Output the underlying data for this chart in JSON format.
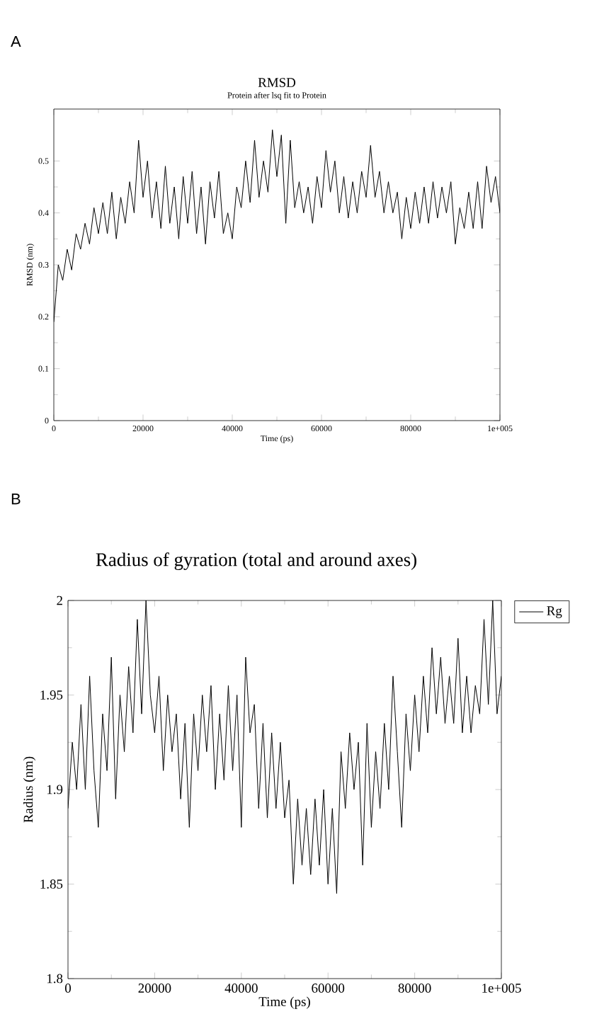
{
  "chart_data": [
    {
      "type": "line",
      "title": "RMSD",
      "subtitle": "Protein after lsq fit to Protein",
      "xlabel": "Time (ps)",
      "ylabel": "RMSD (nm)",
      "annotations": [
        "A"
      ],
      "xlim": [
        0,
        100000
      ],
      "ylim": [
        0,
        0.6
      ],
      "xticks": [
        0,
        20000,
        40000,
        60000,
        80000,
        {
          "value": 100000,
          "label": "1e+005"
        }
      ],
      "yticks": [
        0,
        0.1,
        0.2,
        0.3,
        0.4,
        0.5
      ],
      "grid": false,
      "legend": false,
      "marker": "none",
      "line_style": "solid",
      "x": [
        0,
        1000,
        2000,
        3000,
        4000,
        5000,
        6000,
        7000,
        8000,
        9000,
        10000,
        11000,
        12000,
        13000,
        14000,
        15000,
        16000,
        17000,
        18000,
        19000,
        20000,
        21000,
        22000,
        23000,
        24000,
        25000,
        26000,
        27000,
        28000,
        29000,
        30000,
        31000,
        32000,
        33000,
        34000,
        35000,
        36000,
        37000,
        38000,
        39000,
        40000,
        41000,
        42000,
        43000,
        44000,
        45000,
        46000,
        47000,
        48000,
        49000,
        50000,
        51000,
        52000,
        53000,
        54000,
        55000,
        56000,
        57000,
        58000,
        59000,
        60000,
        61000,
        62000,
        63000,
        64000,
        65000,
        66000,
        67000,
        68000,
        69000,
        70000,
        71000,
        72000,
        73000,
        74000,
        75000,
        76000,
        77000,
        78000,
        79000,
        80000,
        81000,
        82000,
        83000,
        84000,
        85000,
        86000,
        87000,
        88000,
        89000,
        90000,
        91000,
        92000,
        93000,
        94000,
        95000,
        96000,
        97000,
        98000,
        99000,
        100000
      ],
      "series": [
        {
          "color": "#000000",
          "values": [
            0.19,
            0.3,
            0.27,
            0.33,
            0.29,
            0.36,
            0.33,
            0.38,
            0.34,
            0.41,
            0.36,
            0.42,
            0.36,
            0.44,
            0.35,
            0.43,
            0.38,
            0.46,
            0.4,
            0.54,
            0.43,
            0.5,
            0.39,
            0.46,
            0.37,
            0.49,
            0.38,
            0.45,
            0.35,
            0.47,
            0.38,
            0.48,
            0.36,
            0.45,
            0.34,
            0.46,
            0.39,
            0.48,
            0.36,
            0.4,
            0.35,
            0.45,
            0.41,
            0.5,
            0.42,
            0.54,
            0.43,
            0.5,
            0.44,
            0.56,
            0.47,
            0.55,
            0.38,
            0.54,
            0.41,
            0.46,
            0.4,
            0.45,
            0.38,
            0.47,
            0.41,
            0.52,
            0.44,
            0.5,
            0.4,
            0.47,
            0.39,
            0.46,
            0.4,
            0.48,
            0.43,
            0.53,
            0.43,
            0.48,
            0.4,
            0.46,
            0.4,
            0.44,
            0.35,
            0.43,
            0.37,
            0.44,
            0.38,
            0.45,
            0.38,
            0.46,
            0.39,
            0.45,
            0.4,
            0.46,
            0.34,
            0.41,
            0.37,
            0.44,
            0.37,
            0.46,
            0.37,
            0.49,
            0.42,
            0.47,
            0.4
          ]
        }
      ]
    },
    {
      "type": "line",
      "title": "Radius of gyration (total and around axes)",
      "xlabel": "Time (ps)",
      "ylabel": "Radius (nm)",
      "annotations": [
        "B"
      ],
      "xlim": [
        0,
        100000
      ],
      "ylim": [
        1.8,
        2
      ],
      "xticks": [
        0,
        20000,
        40000,
        60000,
        80000,
        {
          "value": 100000,
          "label": "1e+005"
        }
      ],
      "yticks": [
        1.8,
        1.85,
        1.9,
        1.95,
        2
      ],
      "grid": false,
      "legend": "right",
      "marker": "none",
      "line_style": "solid",
      "x": [
        0,
        1000,
        2000,
        3000,
        4000,
        5000,
        6000,
        7000,
        8000,
        9000,
        10000,
        11000,
        12000,
        13000,
        14000,
        15000,
        16000,
        17000,
        18000,
        19000,
        20000,
        21000,
        22000,
        23000,
        24000,
        25000,
        26000,
        27000,
        28000,
        29000,
        30000,
        31000,
        32000,
        33000,
        34000,
        35000,
        36000,
        37000,
        38000,
        39000,
        40000,
        41000,
        42000,
        43000,
        44000,
        45000,
        46000,
        47000,
        48000,
        49000,
        50000,
        51000,
        52000,
        53000,
        54000,
        55000,
        56000,
        57000,
        58000,
        59000,
        60000,
        61000,
        62000,
        63000,
        64000,
        65000,
        66000,
        67000,
        68000,
        69000,
        70000,
        71000,
        72000,
        73000,
        74000,
        75000,
        76000,
        77000,
        78000,
        79000,
        80000,
        81000,
        82000,
        83000,
        84000,
        85000,
        86000,
        87000,
        88000,
        89000,
        90000,
        91000,
        92000,
        93000,
        94000,
        95000,
        96000,
        97000,
        98000,
        99000,
        100000
      ],
      "series": [
        {
          "name": "Rg",
          "color": "#000000",
          "values": [
            1.89,
            1.925,
            1.9,
            1.945,
            1.9,
            1.96,
            1.91,
            1.88,
            1.94,
            1.91,
            1.97,
            1.895,
            1.95,
            1.92,
            1.965,
            1.93,
            1.99,
            1.94,
            2.0,
            1.95,
            1.93,
            1.96,
            1.91,
            1.95,
            1.92,
            1.94,
            1.895,
            1.935,
            1.88,
            1.94,
            1.91,
            1.95,
            1.92,
            1.955,
            1.9,
            1.94,
            1.905,
            1.955,
            1.91,
            1.95,
            1.88,
            1.97,
            1.93,
            1.945,
            1.89,
            1.935,
            1.885,
            1.93,
            1.89,
            1.925,
            1.885,
            1.905,
            1.85,
            1.895,
            1.86,
            1.89,
            1.855,
            1.895,
            1.86,
            1.9,
            1.85,
            1.89,
            1.845,
            1.92,
            1.89,
            1.93,
            1.9,
            1.925,
            1.86,
            1.935,
            1.88,
            1.92,
            1.89,
            1.935,
            1.9,
            1.96,
            1.92,
            1.88,
            1.94,
            1.91,
            1.95,
            1.92,
            1.96,
            1.93,
            1.975,
            1.94,
            1.97,
            1.935,
            1.96,
            1.935,
            1.98,
            1.93,
            1.96,
            1.93,
            1.955,
            1.94,
            1.99,
            1.945,
            2.0,
            1.94,
            1.96
          ]
        }
      ]
    }
  ]
}
